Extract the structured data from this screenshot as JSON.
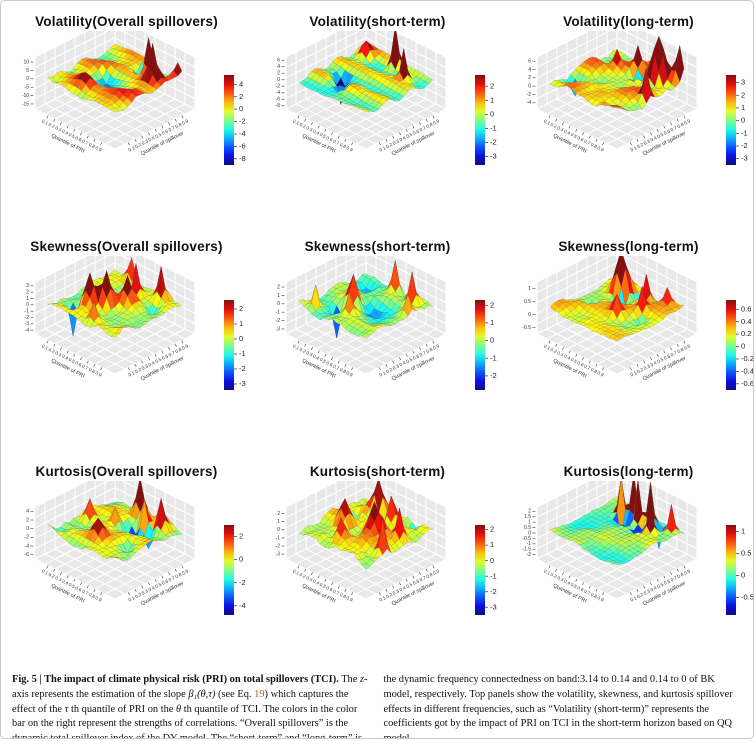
{
  "figure_label": "Fig. 5",
  "axes_shared": {
    "x_label": "Quantile of PRI",
    "y_label": "Quantile of spillover",
    "xy_ticks": [
      "0.1",
      "0.2",
      "0.3",
      "0.4",
      "0.5",
      "0.6",
      "0.7",
      "0.8",
      "0.9"
    ]
  },
  "colors": {
    "colormap": "jet",
    "wall": "#e8e8e8",
    "wall_grid": "#ffffff",
    "link": "#b4571e",
    "tick_text": "#333333"
  },
  "chart_data": [
    {
      "type": "surface3d",
      "title": "Volatility(Overall spillovers)",
      "x_label": "Quantile of PRI",
      "y_label": "Quantile of spillover",
      "xy_ticks": [
        "0.1",
        "0.2",
        "0.3",
        "0.4",
        "0.5",
        "0.6",
        "0.7",
        "0.8",
        "0.9"
      ],
      "z_ticks": [
        10,
        5,
        0,
        -5,
        -10,
        -15
      ],
      "zaxis": [
        -18,
        13
      ],
      "colorbar_ticks": [
        4,
        2,
        0,
        -2,
        -4,
        -6,
        -8
      ],
      "clim": [
        -9,
        5.5
      ],
      "render": {
        "seed": 11,
        "base": 0.6,
        "noise": 0.09,
        "smooth": 1,
        "waves": [
          {
            "fi": 2.2,
            "fj": 0.6,
            "a": 0.07,
            "p": 1.2
          },
          {
            "fi": 0.5,
            "fj": 1.5,
            "a": 0.05,
            "p": 4.0
          }
        ],
        "spikes": [
          [
            2,
            10,
            0.72,
            1.1
          ],
          [
            4,
            13,
            0.62,
            1.0
          ],
          [
            13,
            6,
            0.2,
            1.6
          ],
          [
            0,
            15,
            0.3,
            1.2
          ]
        ],
        "pits": [
          [
            3,
            9,
            0.58,
            0.8
          ],
          [
            8,
            6,
            0.18,
            1.8
          ],
          [
            15,
            1,
            0.15,
            1.5
          ]
        ],
        "whiteCap": false
      }
    },
    {
      "type": "surface3d",
      "title": "Volatility(short-term)",
      "x_label": "Quantile of PRI",
      "y_label": "Quantile of spillover",
      "xy_ticks": [
        "0.1",
        "0.2",
        "0.3",
        "0.4",
        "0.5",
        "0.6",
        "0.7",
        "0.8",
        "0.9"
      ],
      "z_ticks": [
        6,
        4,
        2,
        0,
        -2,
        -4,
        -6,
        -8
      ],
      "zaxis": [
        -9,
        7
      ],
      "colorbar_ticks": [
        2,
        1,
        0,
        -1,
        -2,
        -3
      ],
      "clim": [
        -3.6,
        2.8
      ],
      "render": {
        "seed": 22,
        "base": 0.56,
        "noise": 0.05,
        "smooth": 1,
        "waves": [
          {
            "fi": 2.8,
            "fj": 0.3,
            "a": 0.085,
            "p": 0.5
          }
        ],
        "spikes": [
          [
            1,
            8,
            0.85,
            0.75
          ],
          [
            3,
            12,
            0.62,
            0.85
          ],
          [
            2,
            2,
            0.25,
            1.2
          ]
        ],
        "pits": [
          [
            10,
            4,
            0.5,
            1.0
          ],
          [
            12,
            6,
            0.25,
            1.2
          ]
        ],
        "whiteCap": false
      }
    },
    {
      "type": "surface3d",
      "title": "Volatility(long-term)",
      "x_label": "Quantile of PRI",
      "y_label": "Quantile of spillover",
      "xy_ticks": [
        "0.1",
        "0.2",
        "0.3",
        "0.4",
        "0.5",
        "0.6",
        "0.7",
        "0.8",
        "0.9"
      ],
      "z_ticks": [
        6,
        4,
        2,
        0,
        -2,
        -4
      ],
      "zaxis": [
        -5.5,
        7
      ],
      "colorbar_ticks": [
        3,
        2,
        1,
        0,
        -1,
        -2,
        -3
      ],
      "clim": [
        -3.5,
        3.6
      ],
      "render": {
        "seed": 33,
        "base": 0.52,
        "noise": 0.2,
        "smooth": 1,
        "waves": [
          {
            "fi": 1.8,
            "fj": 1.2,
            "a": 0.06,
            "p": 2.0
          }
        ],
        "spikes": [
          [
            2,
            12,
            0.85,
            1.2
          ],
          [
            0,
            15,
            0.6,
            1.0
          ],
          [
            8,
            15,
            0.55,
            0.8
          ],
          [
            4,
            4,
            0.3,
            1.0
          ],
          [
            2,
            7,
            0.35,
            0.8
          ]
        ],
        "pits": [
          [
            4,
            9,
            0.6,
            1.0
          ],
          [
            1,
            10,
            0.35,
            0.8
          ],
          [
            12,
            2,
            0.25,
            1.2
          ]
        ],
        "whiteCap": false
      }
    },
    {
      "type": "surface3d",
      "title": "Skewness(Overall spillovers)",
      "x_label": "Quantile of PRI",
      "y_label": "Quantile of spillover",
      "xy_ticks": [
        "0.1",
        "0.2",
        "0.3",
        "0.4",
        "0.5",
        "0.6",
        "0.7",
        "0.8",
        "0.9"
      ],
      "z_ticks": [
        3,
        2,
        1,
        0,
        -1,
        -2,
        -3,
        -4
      ],
      "zaxis": [
        -4.6,
        3.6
      ],
      "colorbar_ticks": [
        2,
        1,
        0,
        -1,
        -2,
        -3
      ],
      "clim": [
        -3.4,
        2.6
      ],
      "render": {
        "seed": 44,
        "base": 0.56,
        "noise": 0.17,
        "smooth": 1,
        "waves": [
          {
            "fi": 1.2,
            "fj": 1.2,
            "a": 0.05,
            "p": 0.0
          }
        ],
        "spikes": [
          [
            11,
            5,
            0.55,
            1.2
          ],
          [
            9,
            7,
            0.6,
            1.2
          ],
          [
            6,
            9,
            0.5,
            1.2
          ],
          [
            3,
            8,
            0.65,
            0.9
          ],
          [
            1,
            12,
            0.6,
            0.9
          ],
          [
            14,
            9,
            0.4,
            1.0
          ],
          [
            0,
            4,
            0.35,
            1.0
          ]
        ],
        "pits": [
          [
            13,
            3,
            0.68,
            0.85
          ],
          [
            7,
            4,
            0.3,
            1.1
          ],
          [
            4,
            13,
            0.25,
            1.2
          ]
        ],
        "whiteCap": false
      }
    },
    {
      "type": "surface3d",
      "title": "Skewness(short-term)",
      "x_label": "Quantile of PRI",
      "y_label": "Quantile of spillover",
      "xy_ticks": [
        "0.1",
        "0.2",
        "0.3",
        "0.4",
        "0.5",
        "0.6",
        "0.7",
        "0.8",
        "0.9"
      ],
      "z_ticks": [
        2,
        1,
        0,
        -1,
        -2,
        -3
      ],
      "zaxis": [
        -3.6,
        2.6
      ],
      "colorbar_ticks": [
        2,
        1,
        0,
        -1,
        -2
      ],
      "clim": [
        -2.8,
        2.3
      ],
      "render": {
        "seed": 55,
        "base": 0.55,
        "noise": 0.18,
        "smooth": 1,
        "waves": [
          {
            "fi": 1.5,
            "fj": 0.8,
            "a": 0.05,
            "p": 2.5
          }
        ],
        "spikes": [
          [
            1,
            8,
            0.62,
            0.9
          ],
          [
            2,
            13,
            0.6,
            0.9
          ],
          [
            9,
            6,
            0.55,
            1.1
          ],
          [
            12,
            8,
            0.45,
            1.0
          ],
          [
            14,
            2,
            0.4,
            0.8
          ],
          [
            5,
            15,
            0.35,
            0.9
          ]
        ],
        "pits": [
          [
            12,
            5,
            0.6,
            0.85
          ],
          [
            7,
            8,
            0.25,
            2.2
          ],
          [
            3,
            3,
            0.25,
            1.2
          ]
        ],
        "whiteCap": false
      }
    },
    {
      "type": "surface3d",
      "title": "Skewness(long-term)",
      "x_label": "Quantile of PRI",
      "y_label": "Quantile of spillover",
      "xy_ticks": [
        "0.1",
        "0.2",
        "0.3",
        "0.4",
        "0.5",
        "0.6",
        "0.7",
        "0.8",
        "0.9"
      ],
      "z_ticks": [
        1.0,
        0.5,
        0.0,
        -0.5
      ],
      "zaxis": [
        -0.75,
        1.25
      ],
      "colorbar_ticks": [
        0.6,
        0.4,
        0.2,
        0.0,
        -0.2,
        -0.4,
        -0.6
      ],
      "clim": [
        -0.7,
        0.75
      ],
      "render": {
        "seed": 66,
        "base": 0.49,
        "noise": 0.13,
        "smooth": 1,
        "waves": [
          {
            "fi": 1.3,
            "fj": 1.0,
            "a": 0.05,
            "p": 1.0
          }
        ],
        "spikes": [
          [
            3,
            4,
            0.82,
            1.4
          ],
          [
            2,
            9,
            0.5,
            0.9
          ],
          [
            5,
            11,
            0.42,
            0.8
          ],
          [
            1,
            13,
            0.3,
            0.9
          ],
          [
            9,
            9,
            0.3,
            0.9
          ]
        ],
        "pits": [
          [
            5,
            6,
            0.45,
            1.1
          ],
          [
            2,
            7,
            0.35,
            0.9
          ],
          [
            9,
            3,
            0.3,
            1.1
          ],
          [
            7,
            13,
            0.25,
            1.0
          ]
        ],
        "whiteCap": false
      }
    },
    {
      "type": "surface3d",
      "title": "Kurtosis(Overall spillovers)",
      "x_label": "Quantile of PRI",
      "y_label": "Quantile of spillover",
      "xy_ticks": [
        "0.1",
        "0.2",
        "0.3",
        "0.4",
        "0.5",
        "0.6",
        "0.7",
        "0.8",
        "0.9"
      ],
      "z_ticks": [
        4,
        2,
        0,
        -2,
        -4,
        -6
      ],
      "zaxis": [
        -7,
        5
      ],
      "colorbar_ticks": [
        2,
        0,
        -2,
        -4
      ],
      "clim": [
        -4.8,
        3.0
      ],
      "render": {
        "seed": 77,
        "base": 0.57,
        "noise": 0.15,
        "smooth": 1,
        "waves": [
          {
            "fi": 1.8,
            "fj": 0.9,
            "a": 0.055,
            "p": 3.5
          }
        ],
        "spikes": [
          [
            1,
            7,
            0.7,
            1.0
          ],
          [
            3,
            10,
            0.5,
            0.9
          ],
          [
            2,
            13,
            0.55,
            0.9
          ],
          [
            8,
            2,
            0.4,
            1.0
          ],
          [
            12,
            8,
            0.35,
            1.3
          ],
          [
            6,
            6,
            0.3,
            0.9
          ]
        ],
        "pits": [
          [
            5,
            9,
            0.45,
            1.2
          ],
          [
            4,
            12,
            0.3,
            1.0
          ],
          [
            10,
            13,
            0.2,
            1.2
          ],
          [
            14,
            1,
            0.2,
            1.0
          ]
        ],
        "whiteCap": false
      }
    },
    {
      "type": "surface3d",
      "title": "Kurtosis(short-term)",
      "x_label": "Quantile of PRI",
      "y_label": "Quantile of spillover",
      "xy_ticks": [
        "0.1",
        "0.2",
        "0.3",
        "0.4",
        "0.5",
        "0.6",
        "0.7",
        "0.8",
        "0.9"
      ],
      "z_ticks": [
        2,
        1,
        0,
        -1,
        -2,
        -3
      ],
      "zaxis": [
        -3.6,
        2.8
      ],
      "colorbar_ticks": [
        2,
        1,
        0,
        -1,
        -2,
        -3
      ],
      "clim": [
        -3.5,
        2.3
      ],
      "render": {
        "seed": 88,
        "base": 0.56,
        "noise": 0.26,
        "smooth": 1,
        "waves": [
          {
            "fi": 1.1,
            "fj": 1.1,
            "a": 0.06,
            "p": 5.0
          }
        ],
        "spikes": [
          [
            2,
            5,
            0.6,
            1.3
          ],
          [
            3,
            9,
            0.55,
            1.2
          ],
          [
            9,
            4,
            0.55,
            1.4
          ],
          [
            8,
            10,
            0.6,
            1.4
          ],
          [
            6,
            14,
            0.55,
            0.9
          ],
          [
            11,
            15,
            0.65,
            0.8
          ],
          [
            13,
            7,
            0.4,
            1.2
          ]
        ],
        "pits": [
          [
            4,
            7,
            0.55,
            1.2
          ],
          [
            6,
            3,
            0.35,
            1.0
          ],
          [
            1,
            12,
            0.3,
            1.0
          ]
        ],
        "whiteCap": false
      }
    },
    {
      "type": "surface3d",
      "title": "Kurtosis(long-term)",
      "x_label": "Quantile of PRI",
      "y_label": "Quantile of spillover",
      "xy_ticks": [
        "0.1",
        "0.2",
        "0.3",
        "0.4",
        "0.5",
        "0.6",
        "0.7",
        "0.8",
        "0.9"
      ],
      "z_ticks": [
        2.0,
        1.5,
        1.0,
        0.5,
        0.0,
        -0.5,
        -1.0,
        -1.5,
        -2.0
      ],
      "zaxis": [
        -2.4,
        2.4
      ],
      "colorbar_ticks": [
        1.0,
        0.5,
        0.0,
        -0.5
      ],
      "clim": [
        -0.9,
        1.15
      ],
      "render": {
        "seed": 99,
        "base": 0.52,
        "noise": 0.09,
        "smooth": 1,
        "waves": [
          {
            "fi": 0.8,
            "fj": 0.8,
            "a": 0.03,
            "p": 2.0
          }
        ],
        "spikes": [
          [
            2,
            6,
            1.0,
            0.75
          ],
          [
            3,
            8,
            1.1,
            0.7
          ],
          [
            2,
            10,
            1.0,
            0.75
          ],
          [
            4,
            12,
            0.8,
            0.7
          ],
          [
            3,
            4,
            0.7,
            0.75
          ],
          [
            1,
            14,
            0.5,
            0.7
          ]
        ],
        "pits": [
          [
            4,
            7,
            0.55,
            0.7
          ],
          [
            5,
            10,
            0.5,
            0.7
          ],
          [
            4,
            5,
            0.4,
            0.6
          ],
          [
            2,
            12,
            0.4,
            0.6
          ]
        ],
        "whiteCap": true
      }
    }
  ],
  "caption": {
    "left": [
      {
        "t": "Fig. 5 | The impact of climate physical risk (PRI) on total spillovers (TCI).",
        "b": true
      },
      {
        "t": " The "
      },
      {
        "t": "z",
        "i": true
      },
      {
        "t": "-axis represents the estimation of the slope "
      },
      {
        "t": "β₁(θ,τ)",
        "i": true
      },
      {
        "t": " (see Eq. "
      },
      {
        "t": "19",
        "link": true
      },
      {
        "t": ") which captures the effect of the "
      },
      {
        "t": "τ",
        "i": true
      },
      {
        "t": " th quantile of PRI on the "
      },
      {
        "t": "θ",
        "i": true
      },
      {
        "t": " th quantile of TCI. The colors in the color bar on the right represent the strengths of correlations. “Overall spillovers” is the dynamic total spillover index of the DY model. The “short-term” and “long-term” is"
      }
    ],
    "right": [
      {
        "t": "the dynamic frequency connectedness on band:3.14 to 0.14 and 0.14 to 0 of BK model, respectively. Top panels show the volatility, skewness, and kurtosis spillover effects in different frequencies, such as “Volatility (short-term)” represents the coefficients got by the impact of PRI on TCI in the short-term horizon based on QQ model."
      }
    ]
  }
}
